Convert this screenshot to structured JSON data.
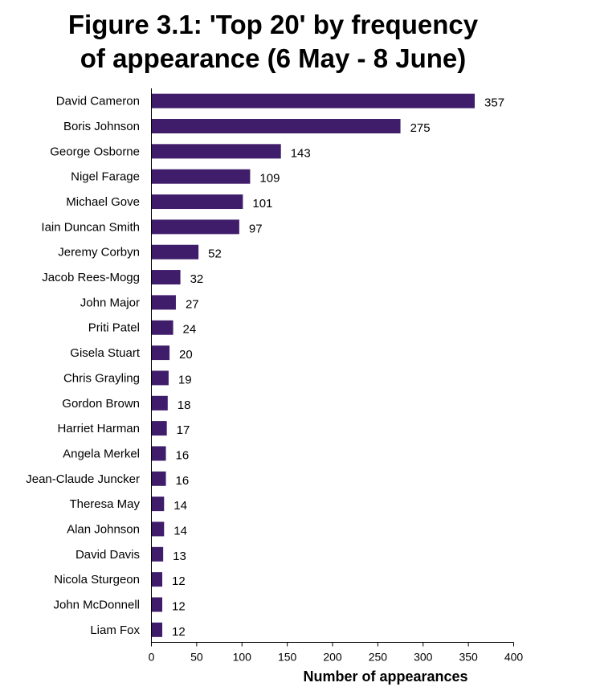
{
  "chart_data": {
    "type": "bar",
    "orientation": "horizontal",
    "title": "Figure 3.1: 'Top 20' by frequency of appearance (6 May - 8 June)",
    "title_lines": [
      "Figure 3.1: 'Top 20' by frequency",
      "of appearance (6 May - 8 June)"
    ],
    "xlabel": "Number of appearances",
    "ylabel": "",
    "xlim": [
      0,
      400
    ],
    "xticks": [
      0,
      50,
      100,
      150,
      200,
      250,
      300,
      350,
      400
    ],
    "grid": false,
    "legend": "none",
    "bar_color": "#3f1d6b",
    "categories": [
      "David Cameron",
      "Boris Johnson",
      "George Osborne",
      "Nigel Farage",
      "Michael Gove",
      "Iain Duncan Smith",
      "Jeremy Corbyn",
      "Jacob Rees-Mogg",
      "John Major",
      "Priti Patel",
      "Gisela Stuart",
      "Chris Grayling",
      "Gordon Brown",
      "Harriet Harman",
      "Angela Merkel",
      "Jean-Claude Juncker",
      "Theresa May",
      "Alan Johnson",
      "David Davis",
      "Nicola Sturgeon",
      "John McDonnell",
      "Liam Fox"
    ],
    "values": [
      357,
      275,
      143,
      109,
      101,
      97,
      52,
      32,
      27,
      24,
      20,
      19,
      18,
      17,
      16,
      16,
      14,
      14,
      13,
      12,
      12,
      12
    ]
  }
}
